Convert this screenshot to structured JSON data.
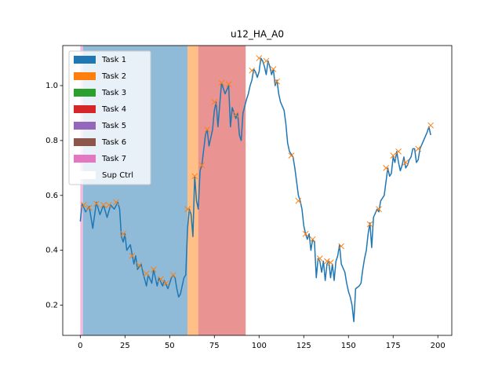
{
  "chart_data": {
    "type": "line",
    "title": "u12_HA_A0",
    "xlim": [
      -9.8,
      207.8
    ],
    "ylim": [
      0.09,
      1.146
    ],
    "xticks": [
      0,
      25,
      50,
      75,
      100,
      125,
      150,
      175,
      200
    ],
    "yticks": [
      0.2,
      0.4,
      0.6,
      0.8,
      1.0
    ],
    "legend_position": "upper left",
    "legend": [
      {
        "name": "Task 1",
        "color": "#1f77b4"
      },
      {
        "name": "Task 2",
        "color": "#ff7f0e"
      },
      {
        "name": "Task 3",
        "color": "#2ca02c"
      },
      {
        "name": "Task 4",
        "color": "#d62728"
      },
      {
        "name": "Task 5",
        "color": "#9467bd"
      },
      {
        "name": "Task 6",
        "color": "#8c564b"
      },
      {
        "name": "Task 7",
        "color": "#e377c2"
      },
      {
        "name": "Sup Ctrl",
        "color": "#ffffff"
      }
    ],
    "spans": [
      {
        "name": "Task 7",
        "color": "#e377c2",
        "start": 0,
        "end": 1.5
      },
      {
        "name": "Task 1",
        "color": "#1f77b4",
        "start": 1.5,
        "end": 60
      },
      {
        "name": "Task 2",
        "color": "#ff7f0e",
        "start": 60,
        "end": 66
      },
      {
        "name": "Task 4",
        "color": "#d62728",
        "start": 66,
        "end": 92.5
      }
    ],
    "series": [
      {
        "color": "#1f77b4",
        "x": [
          0,
          1,
          3,
          5,
          7,
          9,
          11,
          13,
          15,
          17,
          19,
          21,
          22,
          23,
          24,
          25,
          26,
          28,
          30,
          31,
          32,
          34,
          35,
          37,
          38,
          40,
          41,
          43,
          44,
          46,
          47,
          49,
          51,
          52,
          53,
          54,
          55,
          56,
          58,
          59,
          60,
          61,
          62,
          63,
          64,
          65,
          66,
          67,
          68,
          70,
          71,
          72,
          74,
          75,
          76,
          77,
          78,
          79,
          80,
          81,
          83,
          84,
          85,
          87,
          88,
          89,
          90,
          91,
          93,
          94,
          95,
          96,
          97,
          98,
          99,
          100,
          101,
          102,
          103,
          104,
          105,
          106,
          107,
          108,
          109,
          110,
          111,
          112,
          114,
          115,
          116,
          117,
          119,
          120,
          121,
          122,
          123,
          124,
          125,
          126,
          127,
          128,
          129,
          130,
          131,
          132,
          133,
          134,
          135,
          136,
          137,
          138,
          139,
          140,
          141,
          142,
          143,
          144,
          145,
          146,
          148,
          149,
          150,
          151,
          152,
          153,
          154,
          156,
          157,
          158,
          159,
          160,
          161,
          162,
          163,
          164,
          166,
          167,
          168,
          170,
          171,
          172,
          173,
          174,
          175,
          176,
          177,
          178,
          179,
          180,
          181,
          182,
          183,
          184,
          185,
          186,
          187,
          188,
          189,
          190,
          192,
          194,
          195,
          196
        ],
        "values": [
          0.505,
          0.57,
          0.54,
          0.56,
          0.48,
          0.575,
          0.53,
          0.565,
          0.52,
          0.565,
          0.55,
          0.575,
          0.55,
          0.45,
          0.43,
          0.46,
          0.4,
          0.42,
          0.35,
          0.38,
          0.33,
          0.35,
          0.32,
          0.27,
          0.31,
          0.28,
          0.33,
          0.27,
          0.3,
          0.27,
          0.29,
          0.26,
          0.3,
          0.31,
          0.3,
          0.26,
          0.23,
          0.24,
          0.3,
          0.31,
          0.48,
          0.55,
          0.53,
          0.45,
          0.67,
          0.58,
          0.55,
          0.69,
          0.71,
          0.82,
          0.84,
          0.78,
          0.84,
          0.91,
          0.94,
          0.85,
          0.93,
          1.01,
          0.99,
          0.97,
          1.0,
          0.85,
          0.92,
          0.88,
          0.9,
          0.82,
          0.8,
          0.9,
          0.95,
          0.97,
          1.0,
          1.02,
          1.06,
          1.05,
          1.03,
          1.05,
          1.1,
          1.09,
          1.07,
          1.04,
          1.09,
          1.07,
          1.04,
          1.06,
          1.0,
          1.02,
          0.97,
          0.94,
          0.91,
          0.86,
          0.79,
          0.76,
          0.74,
          0.7,
          0.65,
          0.6,
          0.58,
          0.55,
          0.49,
          0.46,
          0.44,
          0.46,
          0.4,
          0.44,
          0.43,
          0.3,
          0.37,
          0.36,
          0.32,
          0.36,
          0.29,
          0.35,
          0.36,
          0.3,
          0.35,
          0.29,
          0.36,
          0.38,
          0.42,
          0.35,
          0.32,
          0.28,
          0.25,
          0.23,
          0.2,
          0.14,
          0.26,
          0.27,
          0.28,
          0.33,
          0.37,
          0.4,
          0.46,
          0.5,
          0.41,
          0.52,
          0.55,
          0.54,
          0.58,
          0.6,
          0.65,
          0.7,
          0.67,
          0.68,
          0.74,
          0.72,
          0.76,
          0.72,
          0.69,
          0.71,
          0.74,
          0.7,
          0.71,
          0.73,
          0.74,
          0.77,
          0.77,
          0.72,
          0.73,
          0.77,
          0.8,
          0.83,
          0.85,
          0.82
        ]
      },
      {
        "color": "#ff7f0e",
        "marker": "x",
        "x": [
          2,
          5,
          9,
          13,
          16,
          20,
          24,
          29,
          33,
          37,
          41,
          45,
          48,
          52,
          60,
          64,
          68,
          71,
          75,
          79,
          83,
          87,
          96,
          100,
          104,
          108,
          110,
          118,
          122,
          126,
          130,
          134,
          138,
          140,
          146,
          162,
          167,
          171,
          175,
          178,
          182,
          189,
          196
        ],
        "values": [
          0.565,
          0.555,
          0.57,
          0.565,
          0.565,
          0.575,
          0.46,
          0.38,
          0.345,
          0.315,
          0.33,
          0.295,
          0.28,
          0.31,
          0.55,
          0.67,
          0.71,
          0.84,
          0.94,
          1.01,
          1.005,
          0.895,
          1.055,
          1.1,
          1.09,
          1.06,
          1.015,
          0.745,
          0.58,
          0.46,
          0.44,
          0.37,
          0.36,
          0.355,
          0.415,
          0.495,
          0.55,
          0.7,
          0.745,
          0.76,
          0.72,
          0.77,
          0.855
        ]
      }
    ]
  }
}
